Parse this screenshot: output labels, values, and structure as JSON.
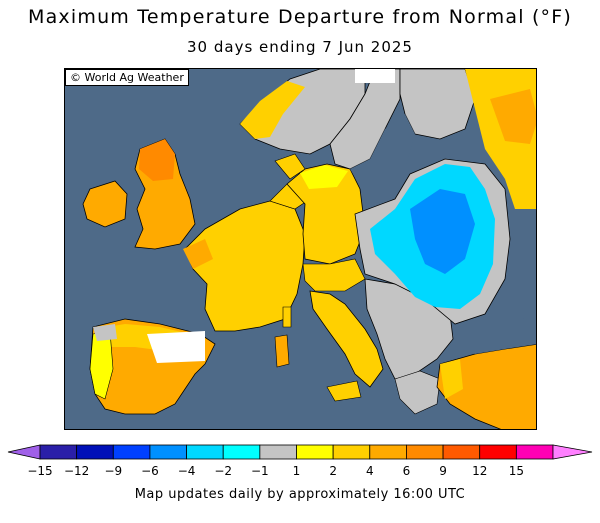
{
  "header": {
    "title": "Maximum Temperature Departure from Normal (°F)",
    "subtitle": "30 days ending 7 Jun 2025"
  },
  "map": {
    "credit": "© World Ag Weather"
  },
  "legend": {
    "bins": [
      {
        "color": "#6a0da8"
      },
      {
        "color": "#2a1fa8"
      },
      {
        "color": "#0010b8"
      },
      {
        "color": "#0040ff"
      },
      {
        "color": "#0090ff"
      },
      {
        "color": "#00d8ff"
      },
      {
        "color": "#00ffff"
      },
      {
        "color": "#c4c4c4"
      },
      {
        "color": "#ffff00"
      },
      {
        "color": "#ffd000"
      },
      {
        "color": "#ffaa00"
      },
      {
        "color": "#ff8a00"
      },
      {
        "color": "#ff5a00"
      },
      {
        "color": "#ff0000"
      },
      {
        "color": "#ff00b4"
      },
      {
        "color": "#ff80ff"
      }
    ],
    "ticks": [
      "−15",
      "−12",
      "−9",
      "−6",
      "−4",
      "−2",
      "−1",
      "1",
      "2",
      "4",
      "6",
      "9",
      "12",
      "15"
    ]
  },
  "footer": {
    "note": "Map updates daily by approximately 16:00 UTC"
  }
}
